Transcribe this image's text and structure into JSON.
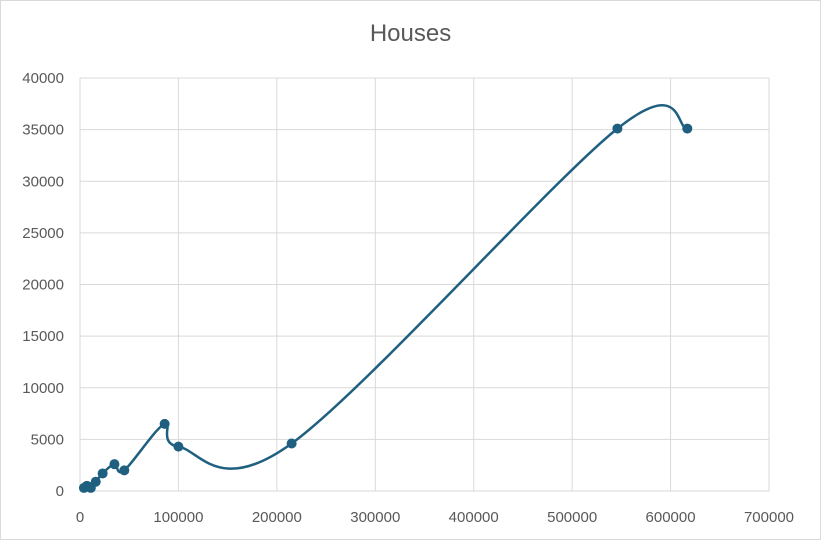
{
  "chart_data": {
    "type": "scatter",
    "title": "Houses",
    "xlabel": "",
    "ylabel": "",
    "xlim": [
      0,
      700000
    ],
    "ylim": [
      0,
      40000
    ],
    "x_ticks": [
      0,
      100000,
      200000,
      300000,
      400000,
      500000,
      600000,
      700000
    ],
    "y_ticks": [
      0,
      5000,
      10000,
      15000,
      20000,
      25000,
      30000,
      35000,
      40000
    ],
    "grid": true,
    "legend": "none",
    "series": [
      {
        "color": "#1f5f7f",
        "smooth_line": true,
        "points": [
          {
            "x": 4000,
            "y": 300
          },
          {
            "x": 7000,
            "y": 500
          },
          {
            "x": 9000,
            "y": 400
          },
          {
            "x": 11000,
            "y": 300
          },
          {
            "x": 16000,
            "y": 900
          },
          {
            "x": 23000,
            "y": 1700
          },
          {
            "x": 35000,
            "y": 2600
          },
          {
            "x": 45000,
            "y": 2000
          },
          {
            "x": 86000,
            "y": 6500
          },
          {
            "x": 100000,
            "y": 4300
          },
          {
            "x": 215000,
            "y": 4600
          },
          {
            "x": 546000,
            "y": 35100
          },
          {
            "x": 617000,
            "y": 35100
          }
        ]
      }
    ]
  }
}
